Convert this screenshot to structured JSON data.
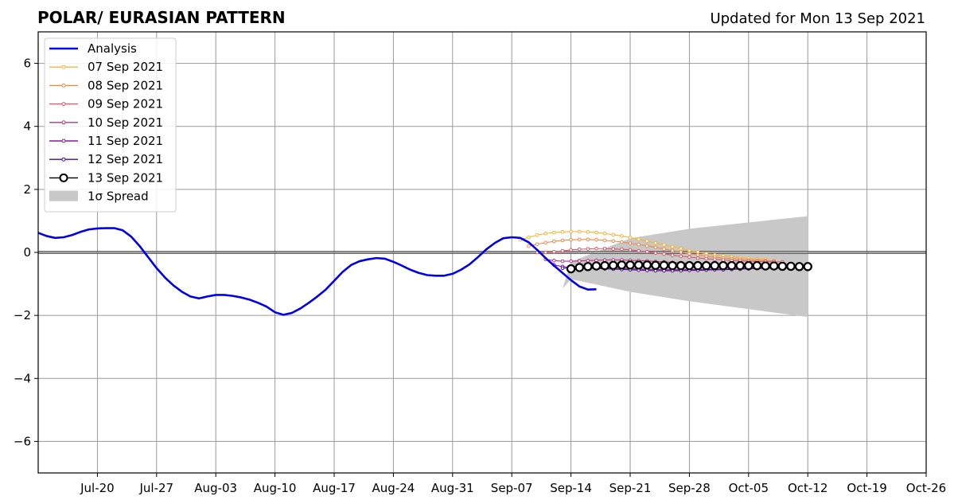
{
  "header": {
    "title": "POLAR/ EURASIAN  PATTERN",
    "updated": "Updated for Mon 13 Sep 2021"
  },
  "chart_data": {
    "type": "line",
    "title": "POLAR/ EURASIAN  PATTERN",
    "subtitle": "Updated for Mon 13 Sep 2021",
    "xlabel": "",
    "ylabel": "",
    "x_range": [
      "2021-07-13",
      "2021-10-26"
    ],
    "ylim": [
      -7,
      7
    ],
    "grid": true,
    "legend_position": "top-left",
    "x_ticks": [
      {
        "date": "2021-07-20",
        "label": "Jul-20"
      },
      {
        "date": "2021-07-27",
        "label": "Jul-27"
      },
      {
        "date": "2021-08-03",
        "label": "Aug-03"
      },
      {
        "date": "2021-08-10",
        "label": "Aug-10"
      },
      {
        "date": "2021-08-17",
        "label": "Aug-17"
      },
      {
        "date": "2021-08-24",
        "label": "Aug-24"
      },
      {
        "date": "2021-08-31",
        "label": "Aug-31"
      },
      {
        "date": "2021-09-07",
        "label": "Sep-07"
      },
      {
        "date": "2021-09-14",
        "label": "Sep-14"
      },
      {
        "date": "2021-09-21",
        "label": "Sep-21"
      },
      {
        "date": "2021-09-28",
        "label": "Sep-28"
      },
      {
        "date": "2021-10-05",
        "label": "Oct-05"
      },
      {
        "date": "2021-10-12",
        "label": "Oct-12"
      },
      {
        "date": "2021-10-19",
        "label": "Oct-19"
      },
      {
        "date": "2021-10-26",
        "label": "Oct-26"
      }
    ],
    "y_ticks": [
      {
        "value": 6,
        "label": "6"
      },
      {
        "value": 4,
        "label": "4"
      },
      {
        "value": 2,
        "label": "2"
      },
      {
        "value": 0,
        "label": "0"
      },
      {
        "value": -2,
        "label": "−2"
      },
      {
        "value": -4,
        "label": "−4"
      },
      {
        "value": -6,
        "label": "−6"
      }
    ],
    "legend": [
      {
        "label": "Analysis",
        "kind": "thick-line",
        "color": "#0000ee"
      },
      {
        "label": "07 Sep 2021",
        "kind": "dot-line",
        "color": "#f9b233"
      },
      {
        "label": "08 Sep 2021",
        "kind": "dot-line",
        "color": "#ef8a48"
      },
      {
        "label": "09 Sep 2021",
        "kind": "dot-line",
        "color": "#dc5a6a"
      },
      {
        "label": "10 Sep 2021",
        "kind": "dot-line",
        "color": "#bb3488"
      },
      {
        "label": "11 Sep 2021",
        "kind": "dot-line",
        "color": "#8d13a0"
      },
      {
        "label": "12 Sep 2021",
        "kind": "dot-line",
        "color": "#4c0a8c"
      },
      {
        "label": "13 Sep 2021",
        "kind": "circle-line",
        "color": "#000000"
      },
      {
        "label": "1σ Spread",
        "kind": "patch",
        "color": "#c8c8c8"
      }
    ],
    "analysis": {
      "name": "Analysis",
      "color": "#0000ee",
      "start": "2021-07-13",
      "values": [
        0.62,
        0.52,
        0.46,
        0.48,
        0.55,
        0.65,
        0.73,
        0.76,
        0.77,
        0.77,
        0.7,
        0.5,
        0.2,
        -0.15,
        -0.5,
        -0.8,
        -1.05,
        -1.25,
        -1.4,
        -1.46,
        -1.4,
        -1.35,
        -1.35,
        -1.38,
        -1.43,
        -1.5,
        -1.6,
        -1.72,
        -1.9,
        -1.98,
        -1.92,
        -1.78,
        -1.6,
        -1.4,
        -1.18,
        -0.9,
        -0.62,
        -0.4,
        -0.28,
        -0.22,
        -0.18,
        -0.2,
        -0.3,
        -0.42,
        -0.55,
        -0.65,
        -0.72,
        -0.74,
        -0.74,
        -0.68,
        -0.55,
        -0.38,
        -0.15,
        0.1,
        0.3,
        0.45,
        0.48,
        0.46,
        0.32,
        0.08,
        -0.18,
        -0.42,
        -0.65,
        -0.88,
        -1.08,
        -1.18,
        -1.17
      ]
    },
    "forecasts": [
      {
        "name": "07 Sep 2021",
        "color": "#f9b233",
        "start": "2021-09-08",
        "values": [
          0.4,
          0.48,
          0.55,
          0.6,
          0.63,
          0.65,
          0.66,
          0.66,
          0.65,
          0.63,
          0.6,
          0.56,
          0.52,
          0.47,
          0.42,
          0.36,
          0.3,
          0.24,
          0.18,
          0.12,
          0.06,
          0.01,
          -0.04,
          -0.08,
          -0.11,
          -0.14,
          -0.17,
          -0.19,
          -0.21,
          -0.22
        ]
      },
      {
        "name": "08 Sep 2021",
        "color": "#ef8a48",
        "start": "2021-09-09",
        "values": [
          0.2,
          0.26,
          0.31,
          0.35,
          0.38,
          0.4,
          0.41,
          0.41,
          0.4,
          0.38,
          0.36,
          0.33,
          0.29,
          0.25,
          0.21,
          0.16,
          0.11,
          0.06,
          0.01,
          -0.04,
          -0.08,
          -0.12,
          -0.15,
          -0.18,
          -0.2,
          -0.22,
          -0.24,
          -0.25,
          -0.26,
          -0.27
        ]
      },
      {
        "name": "09 Sep 2021",
        "color": "#dc5a6a",
        "start": "2021-09-10",
        "values": [
          0.0,
          0.0,
          0.02,
          0.05,
          0.08,
          0.1,
          0.11,
          0.12,
          0.12,
          0.11,
          0.1,
          0.08,
          0.05,
          0.02,
          -0.02,
          -0.05,
          -0.09,
          -0.12,
          -0.15,
          -0.18,
          -0.2,
          -0.22,
          -0.24,
          -0.26,
          -0.27,
          -0.28,
          -0.29,
          -0.29,
          -0.3,
          -0.3
        ]
      },
      {
        "name": "10 Sep 2021",
        "color": "#bb3488",
        "start": "2021-09-11",
        "values": [
          -0.22,
          -0.26,
          -0.28,
          -0.28,
          -0.27,
          -0.26,
          -0.25,
          -0.24,
          -0.24,
          -0.24,
          -0.25,
          -0.26,
          -0.27,
          -0.29,
          -0.3,
          -0.32,
          -0.33,
          -0.34,
          -0.35,
          -0.36,
          -0.36,
          -0.37,
          -0.37,
          -0.38,
          -0.38,
          -0.38,
          -0.39,
          -0.39,
          -0.39,
          -0.39
        ]
      },
      {
        "name": "11 Sep 2021",
        "color": "#8d13a0",
        "start": "2021-09-12",
        "values": [
          -0.4,
          -0.45,
          -0.48,
          -0.49,
          -0.5,
          -0.5,
          -0.5,
          -0.5,
          -0.51,
          -0.52,
          -0.53,
          -0.54,
          -0.54,
          -0.55,
          -0.55,
          -0.55,
          -0.55,
          -0.54,
          -0.54,
          -0.53,
          -0.53,
          -0.52,
          -0.52,
          -0.51,
          -0.51,
          -0.5,
          -0.5,
          -0.5,
          -0.49,
          -0.49
        ]
      },
      {
        "name": "12 Sep 2021",
        "color": "#4c0a8c",
        "start": "2021-09-13",
        "values": [
          -0.5,
          -0.5,
          -0.5,
          -0.5,
          -0.51,
          -0.52,
          -0.53,
          -0.54,
          -0.55,
          -0.56,
          -0.57,
          -0.58,
          -0.58,
          -0.58,
          -0.58,
          -0.57,
          -0.57,
          -0.56,
          -0.55,
          -0.55,
          -0.54,
          -0.53,
          -0.52,
          -0.51,
          -0.5,
          -0.49,
          -0.49,
          -0.48,
          -0.48,
          -0.48
        ]
      },
      {
        "name": "13 Sep 2021",
        "color": "#000000",
        "start": "2021-09-14",
        "values": [
          -0.52,
          -0.48,
          -0.45,
          -0.43,
          -0.42,
          -0.41,
          -0.4,
          -0.4,
          -0.4,
          -0.4,
          -0.41,
          -0.41,
          -0.42,
          -0.42,
          -0.42,
          -0.42,
          -0.42,
          -0.42,
          -0.42,
          -0.42,
          -0.42,
          -0.42,
          -0.42,
          -0.43,
          -0.43,
          -0.44,
          -0.44,
          -0.45,
          -0.45
        ]
      }
    ],
    "spread": {
      "name": "1σ Spread",
      "color": "#c8c8c8",
      "dates": [
        "2021-09-13",
        "2021-09-14",
        "2021-09-21",
        "2021-09-28",
        "2021-10-05",
        "2021-10-12"
      ],
      "upper": [
        -1.15,
        -0.3,
        0.45,
        0.75,
        0.95,
        1.15
      ],
      "lower": [
        -1.15,
        -0.85,
        -1.25,
        -1.55,
        -1.8,
        -2.05
      ]
    },
    "zero_line": 0
  }
}
